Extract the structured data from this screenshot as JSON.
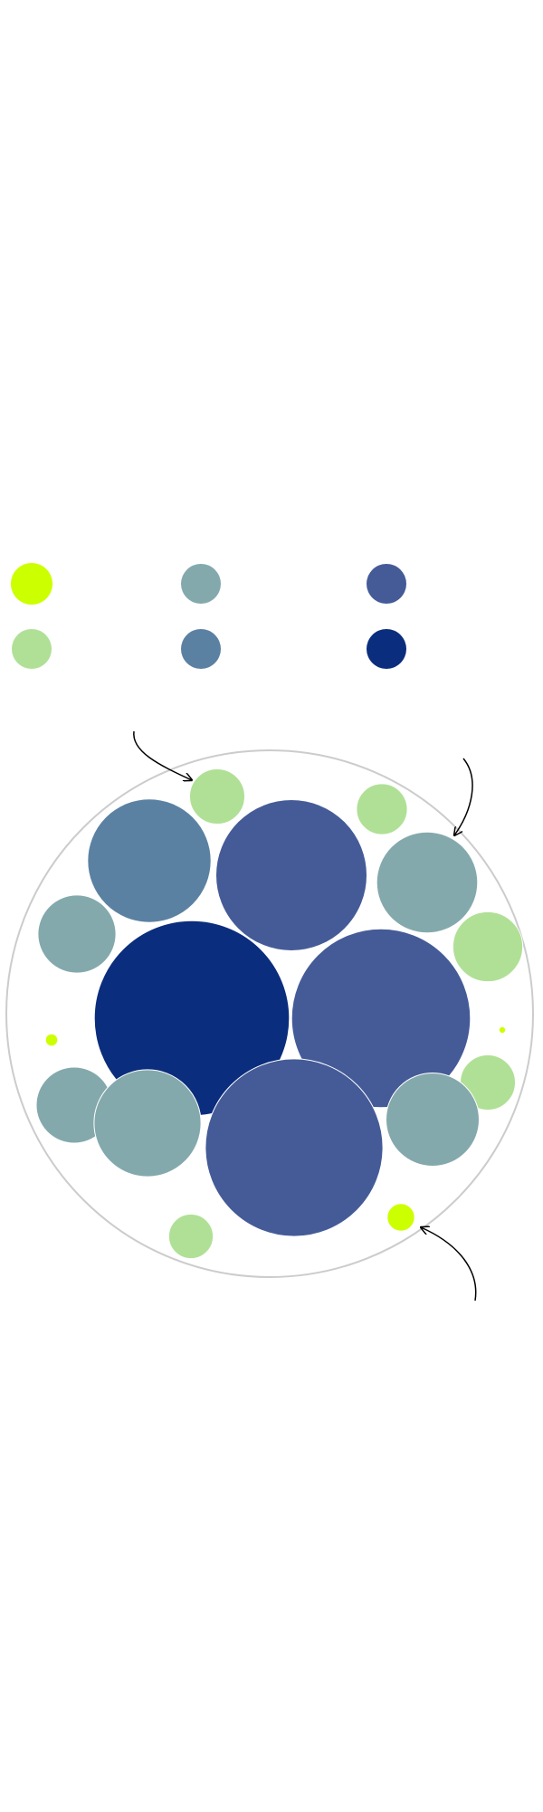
{
  "chart_data": {
    "type": "packed-bubble",
    "title": "",
    "legend": {
      "placement": "top-left",
      "swatches": [
        "#ccff00",
        "#84a9ac",
        "#455b98",
        "#b0e096",
        "#5b81a2",
        "#0b2d7d"
      ]
    },
    "palette": {
      "c1": "#ccff00",
      "c2": "#b0e096",
      "c3": "#84a9ac",
      "c4": "#5b81a2",
      "c5": "#455b98",
      "c6": "#0b2d7d",
      "container": "#cccccc"
    },
    "bubbles": [
      {
        "id": "b1",
        "group": "c2",
        "value": 20
      },
      {
        "id": "b2",
        "group": "c2",
        "value": 17
      },
      {
        "id": "b3",
        "group": "c4",
        "value": 100
      },
      {
        "id": "b4",
        "group": "c5",
        "value": 150
      },
      {
        "id": "b5",
        "group": "c3",
        "value": 67
      },
      {
        "id": "b6",
        "group": "c3",
        "value": 40
      },
      {
        "id": "b7",
        "group": "c2",
        "value": 32
      },
      {
        "id": "b8",
        "group": "c6",
        "value": 250
      },
      {
        "id": "b9",
        "group": "c5",
        "value": 210
      },
      {
        "id": "b10",
        "group": "c1",
        "value": 1
      },
      {
        "id": "b11",
        "group": "c1",
        "value": 0.3
      },
      {
        "id": "b12",
        "group": "c2",
        "value": 20
      },
      {
        "id": "b13",
        "group": "c3",
        "value": 38
      },
      {
        "id": "b14",
        "group": "c3",
        "value": 75
      },
      {
        "id": "b15",
        "group": "c5",
        "value": 207
      },
      {
        "id": "b16",
        "group": "c3",
        "value": 57
      },
      {
        "id": "b17",
        "group": "c1",
        "value": 5
      },
      {
        "id": "b18",
        "group": "c2",
        "value": 13
      }
    ],
    "annotations": [
      {
        "id": "arrow-top-left",
        "target": "b1",
        "text": ""
      },
      {
        "id": "arrow-top-right",
        "target": "b5",
        "text": ""
      },
      {
        "id": "arrow-bottom-right",
        "target": "b17",
        "text": ""
      }
    ]
  }
}
